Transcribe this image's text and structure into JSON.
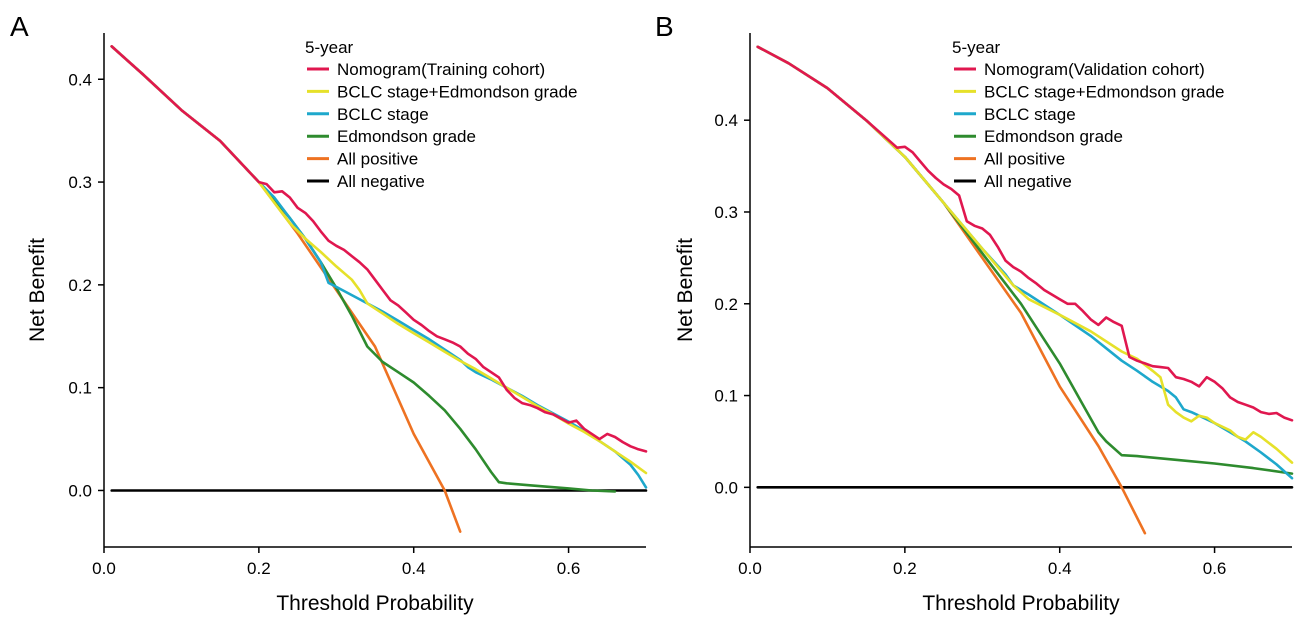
{
  "colors": {
    "nomogram": "#E0174F",
    "bclc_edmondson": "#E6E12A",
    "bclc": "#1EA8CC",
    "edmondson": "#2E8B2E",
    "all_positive": "#EE7222",
    "all_negative": "#000000"
  },
  "chart_data": [
    {
      "panel_label": "A",
      "type": "line",
      "xlabel": "Threshold Probability",
      "ylabel": "Net Benefit",
      "xlim": [
        0,
        0.7
      ],
      "ylim": [
        -0.055,
        0.445
      ],
      "xticks": [
        0.0,
        0.2,
        0.4,
        0.6
      ],
      "xtick_labels": [
        "0.0",
        "0.2",
        "0.4",
        "0.6"
      ],
      "yticks": [
        0.0,
        0.1,
        0.2,
        0.3,
        0.4
      ],
      "ytick_labels": [
        "0.0",
        "0.1",
        "0.2",
        "0.3",
        "0.4"
      ],
      "legend_title": "5-year",
      "legend_position": "top-right",
      "grid": false,
      "series": [
        {
          "name": "Nomogram(Training cohort)",
          "color_key": "nomogram",
          "x": [
            0.01,
            0.05,
            0.1,
            0.15,
            0.2,
            0.21,
            0.22,
            0.23,
            0.24,
            0.25,
            0.26,
            0.27,
            0.28,
            0.29,
            0.3,
            0.31,
            0.32,
            0.33,
            0.34,
            0.35,
            0.36,
            0.37,
            0.38,
            0.39,
            0.4,
            0.41,
            0.42,
            0.43,
            0.44,
            0.45,
            0.46,
            0.47,
            0.48,
            0.49,
            0.5,
            0.51,
            0.52,
            0.53,
            0.54,
            0.55,
            0.56,
            0.57,
            0.58,
            0.59,
            0.6,
            0.61,
            0.62,
            0.63,
            0.64,
            0.65,
            0.66,
            0.67,
            0.68,
            0.69,
            0.7
          ],
          "y": [
            0.432,
            0.405,
            0.37,
            0.34,
            0.3,
            0.298,
            0.29,
            0.291,
            0.285,
            0.275,
            0.27,
            0.262,
            0.252,
            0.243,
            0.238,
            0.234,
            0.228,
            0.222,
            0.215,
            0.205,
            0.195,
            0.185,
            0.18,
            0.173,
            0.166,
            0.161,
            0.155,
            0.15,
            0.147,
            0.144,
            0.14,
            0.133,
            0.128,
            0.12,
            0.115,
            0.11,
            0.098,
            0.09,
            0.085,
            0.083,
            0.08,
            0.076,
            0.074,
            0.07,
            0.066,
            0.068,
            0.06,
            0.055,
            0.05,
            0.055,
            0.052,
            0.047,
            0.043,
            0.04,
            0.038
          ]
        },
        {
          "name": "BCLC stage+Edmondson grade",
          "color_key": "bclc_edmondson",
          "x": [
            0.01,
            0.05,
            0.1,
            0.15,
            0.2,
            0.22,
            0.24,
            0.26,
            0.28,
            0.3,
            0.32,
            0.33,
            0.34,
            0.36,
            0.38,
            0.4,
            0.42,
            0.44,
            0.46,
            0.48,
            0.5,
            0.52,
            0.54,
            0.56,
            0.58,
            0.6,
            0.62,
            0.64,
            0.66,
            0.68,
            0.7
          ],
          "y": [
            0.432,
            0.405,
            0.37,
            0.34,
            0.3,
            0.28,
            0.26,
            0.245,
            0.232,
            0.218,
            0.205,
            0.195,
            0.182,
            0.172,
            0.162,
            0.153,
            0.144,
            0.135,
            0.126,
            0.118,
            0.109,
            0.1,
            0.091,
            0.082,
            0.074,
            0.065,
            0.057,
            0.048,
            0.038,
            0.028,
            0.017
          ]
        },
        {
          "name": "BCLC stage",
          "color_key": "bclc",
          "x": [
            0.01,
            0.05,
            0.1,
            0.15,
            0.2,
            0.22,
            0.24,
            0.26,
            0.28,
            0.29,
            0.3,
            0.32,
            0.34,
            0.36,
            0.38,
            0.4,
            0.42,
            0.44,
            0.46,
            0.47,
            0.48,
            0.5,
            0.52,
            0.54,
            0.56,
            0.58,
            0.6,
            0.62,
            0.64,
            0.66,
            0.68,
            0.69,
            0.7
          ],
          "y": [
            0.432,
            0.405,
            0.37,
            0.34,
            0.3,
            0.285,
            0.265,
            0.245,
            0.222,
            0.202,
            0.198,
            0.19,
            0.182,
            0.174,
            0.165,
            0.156,
            0.147,
            0.137,
            0.127,
            0.12,
            0.115,
            0.108,
            0.1,
            0.092,
            0.083,
            0.075,
            0.067,
            0.058,
            0.048,
            0.038,
            0.025,
            0.015,
            0.003
          ]
        },
        {
          "name": "Edmondson grade",
          "color_key": "edmondson",
          "x": [
            0.01,
            0.05,
            0.1,
            0.15,
            0.2,
            0.22,
            0.24,
            0.26,
            0.28,
            0.3,
            0.32,
            0.34,
            0.36,
            0.38,
            0.4,
            0.42,
            0.44,
            0.46,
            0.48,
            0.5,
            0.51,
            0.52,
            0.55,
            0.6,
            0.63,
            0.66
          ],
          "y": [
            0.432,
            0.405,
            0.37,
            0.34,
            0.3,
            0.283,
            0.265,
            0.245,
            0.222,
            0.197,
            0.17,
            0.14,
            0.125,
            0.115,
            0.105,
            0.092,
            0.078,
            0.06,
            0.04,
            0.018,
            0.008,
            0.007,
            0.005,
            0.002,
            0.0,
            -0.001
          ]
        },
        {
          "name": "All positive",
          "color_key": "all_positive",
          "x": [
            0.01,
            0.05,
            0.1,
            0.15,
            0.2,
            0.25,
            0.3,
            0.35,
            0.4,
            0.44,
            0.46
          ],
          "y": [
            0.432,
            0.405,
            0.37,
            0.34,
            0.3,
            0.25,
            0.195,
            0.14,
            0.055,
            0.0,
            -0.04
          ]
        },
        {
          "name": "All negative",
          "color_key": "all_negative",
          "x": [
            0.01,
            0.7
          ],
          "y": [
            0.0,
            0.0
          ]
        }
      ]
    },
    {
      "panel_label": "B",
      "type": "line",
      "xlabel": "Threshold Probability",
      "ylabel": "Net Benefit",
      "xlim": [
        0,
        0.7
      ],
      "ylim": [
        -0.065,
        0.495
      ],
      "xticks": [
        0.0,
        0.2,
        0.4,
        0.6
      ],
      "xtick_labels": [
        "0.0",
        "0.2",
        "0.4",
        "0.6"
      ],
      "yticks": [
        0.0,
        0.1,
        0.2,
        0.3,
        0.4
      ],
      "ytick_labels": [
        "0.0",
        "0.1",
        "0.2",
        "0.3",
        "0.4"
      ],
      "legend_title": "5-year",
      "legend_position": "top-right",
      "grid": false,
      "series": [
        {
          "name": "Nomogram(Validation cohort)",
          "color_key": "nomogram",
          "x": [
            0.01,
            0.05,
            0.1,
            0.15,
            0.19,
            0.2,
            0.21,
            0.22,
            0.23,
            0.24,
            0.25,
            0.26,
            0.27,
            0.28,
            0.29,
            0.3,
            0.31,
            0.32,
            0.33,
            0.34,
            0.35,
            0.36,
            0.37,
            0.38,
            0.39,
            0.4,
            0.41,
            0.42,
            0.43,
            0.44,
            0.45,
            0.46,
            0.47,
            0.48,
            0.49,
            0.5,
            0.51,
            0.52,
            0.53,
            0.54,
            0.55,
            0.56,
            0.57,
            0.58,
            0.59,
            0.6,
            0.61,
            0.62,
            0.63,
            0.64,
            0.65,
            0.66,
            0.67,
            0.68,
            0.69,
            0.7
          ],
          "y": [
            0.48,
            0.462,
            0.435,
            0.4,
            0.37,
            0.371,
            0.365,
            0.355,
            0.345,
            0.337,
            0.33,
            0.325,
            0.318,
            0.29,
            0.285,
            0.282,
            0.275,
            0.262,
            0.247,
            0.24,
            0.235,
            0.228,
            0.222,
            0.215,
            0.21,
            0.205,
            0.2,
            0.2,
            0.192,
            0.183,
            0.177,
            0.185,
            0.18,
            0.176,
            0.142,
            0.138,
            0.135,
            0.132,
            0.131,
            0.13,
            0.12,
            0.118,
            0.115,
            0.11,
            0.12,
            0.115,
            0.108,
            0.098,
            0.093,
            0.09,
            0.087,
            0.082,
            0.08,
            0.081,
            0.076,
            0.073
          ]
        },
        {
          "name": "BCLC stage+Edmondson grade",
          "color_key": "bclc_edmondson",
          "x": [
            0.01,
            0.05,
            0.1,
            0.15,
            0.2,
            0.25,
            0.3,
            0.34,
            0.36,
            0.4,
            0.44,
            0.48,
            0.5,
            0.52,
            0.53,
            0.54,
            0.55,
            0.56,
            0.57,
            0.58,
            0.59,
            0.6,
            0.62,
            0.63,
            0.64,
            0.65,
            0.66,
            0.68,
            0.7
          ],
          "y": [
            0.48,
            0.462,
            0.435,
            0.4,
            0.36,
            0.31,
            0.26,
            0.22,
            0.205,
            0.188,
            0.17,
            0.148,
            0.14,
            0.127,
            0.12,
            0.09,
            0.082,
            0.076,
            0.072,
            0.078,
            0.076,
            0.07,
            0.062,
            0.055,
            0.052,
            0.06,
            0.055,
            0.042,
            0.027
          ]
        },
        {
          "name": "BCLC stage",
          "color_key": "bclc",
          "x": [
            0.01,
            0.05,
            0.1,
            0.15,
            0.2,
            0.25,
            0.3,
            0.33,
            0.34,
            0.36,
            0.4,
            0.44,
            0.48,
            0.5,
            0.52,
            0.54,
            0.55,
            0.56,
            0.57,
            0.58,
            0.6,
            0.62,
            0.64,
            0.66,
            0.68,
            0.7
          ],
          "y": [
            0.48,
            0.462,
            0.435,
            0.4,
            0.36,
            0.31,
            0.26,
            0.232,
            0.22,
            0.21,
            0.188,
            0.165,
            0.138,
            0.127,
            0.115,
            0.105,
            0.098,
            0.085,
            0.082,
            0.078,
            0.07,
            0.06,
            0.05,
            0.038,
            0.025,
            0.01
          ]
        },
        {
          "name": "Edmondson grade",
          "color_key": "edmondson",
          "x": [
            0.01,
            0.05,
            0.1,
            0.15,
            0.2,
            0.25,
            0.3,
            0.35,
            0.4,
            0.43,
            0.45,
            0.46,
            0.48,
            0.5,
            0.55,
            0.6,
            0.65,
            0.7
          ],
          "y": [
            0.48,
            0.462,
            0.435,
            0.4,
            0.36,
            0.31,
            0.255,
            0.2,
            0.135,
            0.09,
            0.06,
            0.05,
            0.035,
            0.034,
            0.03,
            0.026,
            0.021,
            0.015
          ]
        },
        {
          "name": "All positive",
          "color_key": "all_positive",
          "x": [
            0.01,
            0.05,
            0.1,
            0.15,
            0.2,
            0.25,
            0.3,
            0.35,
            0.4,
            0.45,
            0.48,
            0.51
          ],
          "y": [
            0.48,
            0.462,
            0.435,
            0.4,
            0.36,
            0.31,
            0.25,
            0.19,
            0.11,
            0.045,
            0.0,
            -0.05
          ]
        },
        {
          "name": "All negative",
          "color_key": "all_negative",
          "x": [
            0.01,
            0.7
          ],
          "y": [
            0.0,
            0.0
          ]
        }
      ]
    }
  ]
}
